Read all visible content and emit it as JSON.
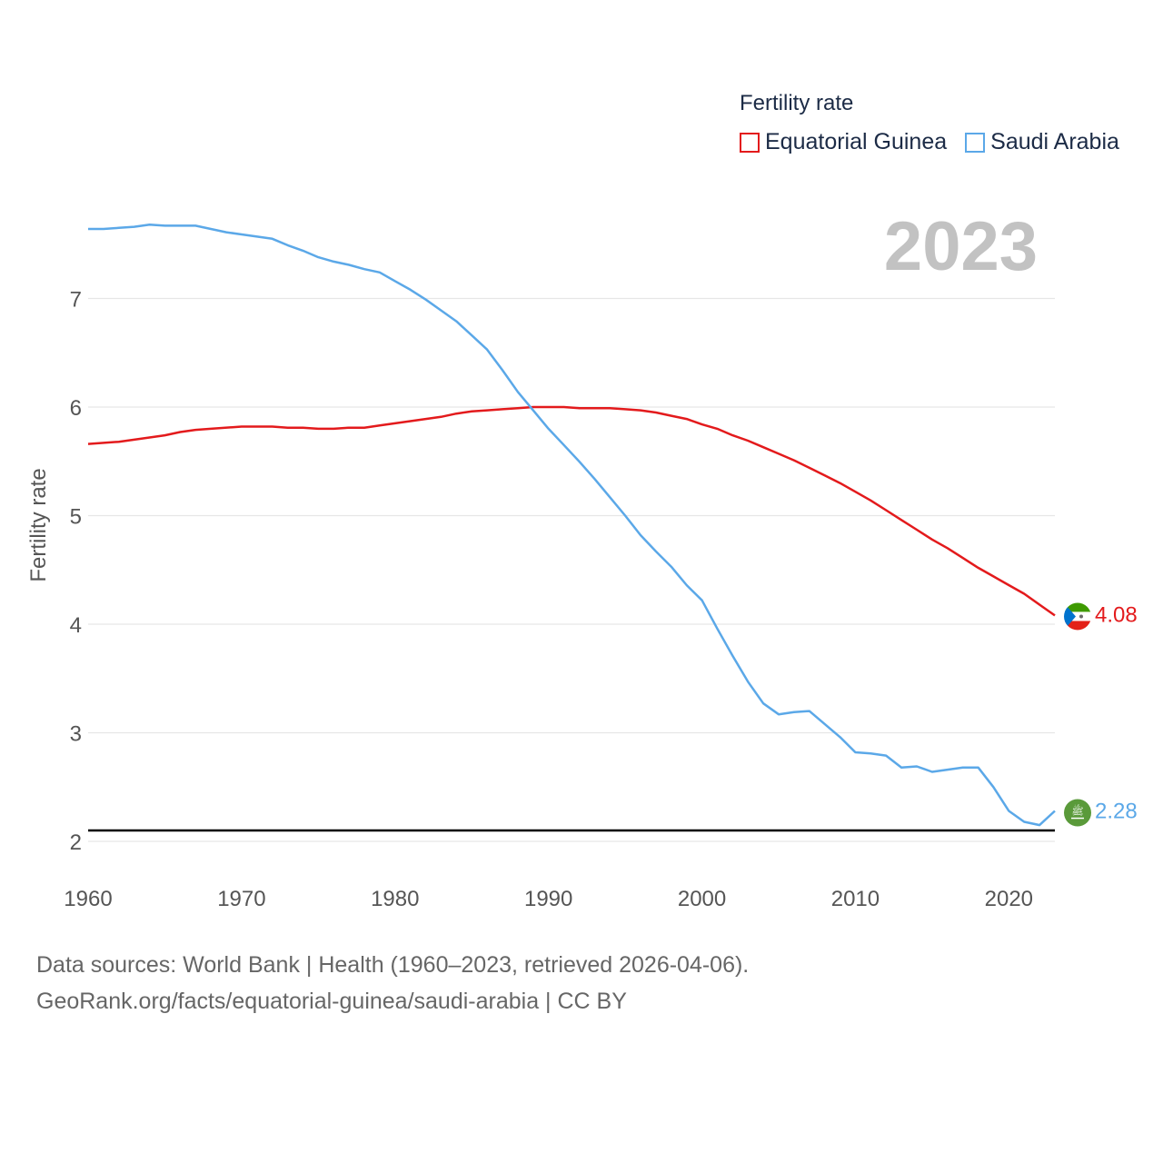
{
  "legend": {
    "title": "Fertility rate",
    "items": [
      {
        "label": "Equatorial Guinea",
        "color": "#e31a1c"
      },
      {
        "label": "Saudi Arabia",
        "color": "#5ba8e8"
      }
    ]
  },
  "year_label": "2023",
  "footer": {
    "line1": "Data sources: World Bank | Health (1960–2023, retrieved 2026-04-06).",
    "line2": "GeoRank.org/facts/equatorial-guinea/saudi-arabia | CC BY"
  },
  "chart_data": {
    "type": "line",
    "title": "Fertility rate",
    "xlabel": "",
    "ylabel": "Fertility rate",
    "xlim": [
      1960,
      2023
    ],
    "ylim": [
      2,
      8
    ],
    "x_ticks": [
      1960,
      1970,
      1980,
      1990,
      2000,
      2010,
      2020
    ],
    "y_ticks": [
      2,
      3,
      4,
      5,
      6,
      7
    ],
    "reference_line": {
      "y": 2.1,
      "color": "#000000"
    },
    "grid": true,
    "series": [
      {
        "name": "Equatorial Guinea",
        "color": "#e31a1c",
        "end_value": "4.08",
        "x": [
          1960,
          1962,
          1964,
          1965,
          1966,
          1967,
          1968,
          1970,
          1971,
          1972,
          1973,
          1974,
          1975,
          1976,
          1977,
          1978,
          1979,
          1980,
          1982,
          1983,
          1984,
          1985,
          1986,
          1987,
          1988,
          1989,
          1990,
          1991,
          1992,
          1993,
          1994,
          1995,
          1996,
          1997,
          1998,
          1999,
          2000,
          2001,
          2002,
          2003,
          2004,
          2005,
          2006,
          2007,
          2008,
          2009,
          2010,
          2011,
          2012,
          2013,
          2014,
          2015,
          2016,
          2017,
          2018,
          2019,
          2020,
          2021,
          2022,
          2023
        ],
        "values": [
          5.66,
          5.68,
          5.72,
          5.74,
          5.77,
          5.79,
          5.8,
          5.82,
          5.82,
          5.82,
          5.81,
          5.81,
          5.8,
          5.8,
          5.81,
          5.81,
          5.83,
          5.85,
          5.89,
          5.91,
          5.94,
          5.96,
          5.97,
          5.98,
          5.99,
          6.0,
          6.0,
          6.0,
          5.99,
          5.99,
          5.99,
          5.98,
          5.97,
          5.95,
          5.92,
          5.89,
          5.84,
          5.8,
          5.74,
          5.69,
          5.63,
          5.57,
          5.51,
          5.44,
          5.37,
          5.3,
          5.22,
          5.14,
          5.05,
          4.96,
          4.87,
          4.78,
          4.7,
          4.61,
          4.52,
          4.44,
          4.36,
          4.28,
          4.18,
          4.08
        ]
      },
      {
        "name": "Saudi Arabia",
        "color": "#5ba8e8",
        "end_value": "2.28",
        "x": [
          1960,
          1961,
          1962,
          1963,
          1964,
          1965,
          1966,
          1967,
          1968,
          1969,
          1970,
          1971,
          1972,
          1973,
          1974,
          1975,
          1976,
          1977,
          1978,
          1979,
          1980,
          1981,
          1982,
          1983,
          1984,
          1985,
          1986,
          1987,
          1988,
          1989,
          1990,
          1991,
          1992,
          1993,
          1994,
          1995,
          1996,
          1997,
          1998,
          1999,
          2000,
          2001,
          2002,
          2003,
          2004,
          2005,
          2006,
          2007,
          2008,
          2009,
          2010,
          2011,
          2012,
          2013,
          2014,
          2015,
          2016,
          2017,
          2018,
          2019,
          2020,
          2021,
          2022,
          2023
        ],
        "values": [
          7.64,
          7.64,
          7.65,
          7.66,
          7.68,
          7.67,
          7.67,
          7.67,
          7.64,
          7.61,
          7.59,
          7.57,
          7.55,
          7.49,
          7.44,
          7.38,
          7.34,
          7.31,
          7.27,
          7.24,
          7.16,
          7.08,
          6.99,
          6.89,
          6.79,
          6.66,
          6.53,
          6.34,
          6.14,
          5.97,
          5.8,
          5.65,
          5.5,
          5.34,
          5.17,
          5.0,
          4.82,
          4.67,
          4.53,
          4.36,
          4.22,
          3.96,
          3.71,
          3.47,
          3.27,
          3.17,
          3.19,
          3.2,
          3.08,
          2.96,
          2.82,
          2.81,
          2.79,
          2.68,
          2.69,
          2.64,
          2.66,
          2.68,
          2.68,
          2.5,
          2.28,
          2.18,
          2.15,
          2.28
        ]
      }
    ]
  }
}
